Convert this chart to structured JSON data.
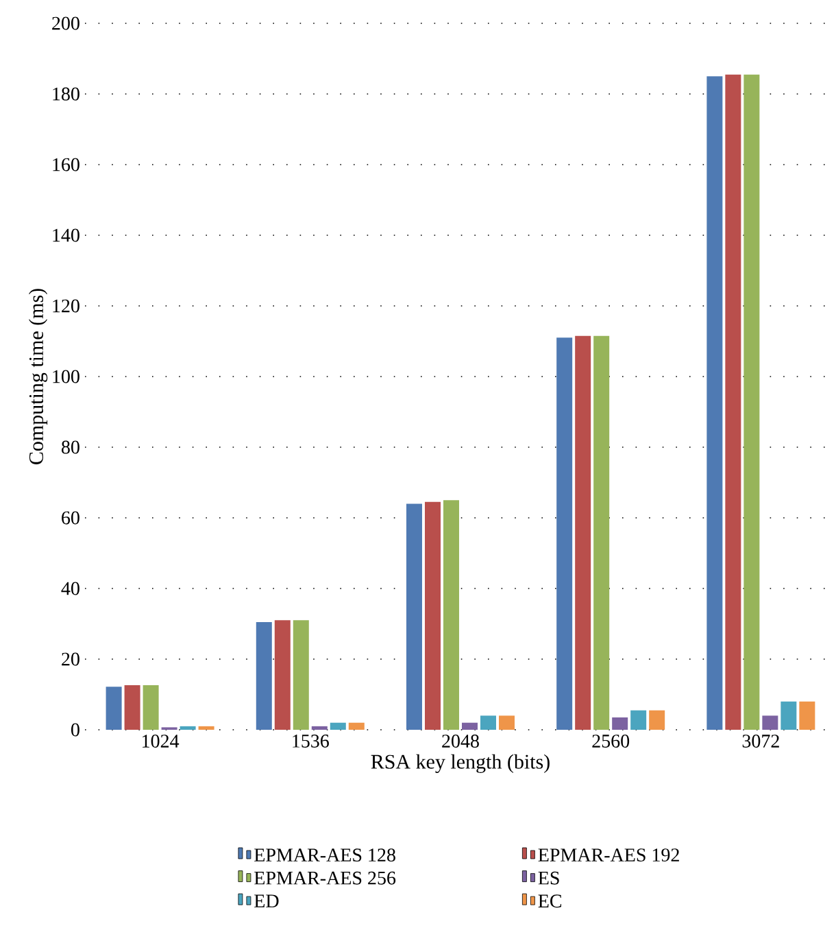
{
  "chart_data": {
    "type": "bar",
    "xlabel": "RSA key length (bits)",
    "ylabel": "Computing time (ms)",
    "categories": [
      "1024",
      "1536",
      "2048",
      "2560",
      "3072"
    ],
    "series": [
      {
        "name": "EPMAR-AES 128",
        "color": "#4f7ab3",
        "values": [
          12.2,
          30.5,
          64,
          111,
          185
        ]
      },
      {
        "name": "EPMAR-AES 192",
        "color": "#b94f4c",
        "values": [
          12.6,
          31,
          64.5,
          111.5,
          185.5
        ]
      },
      {
        "name": "EPMAR-AES 256",
        "color": "#97b45a",
        "values": [
          12.6,
          31,
          65,
          111.5,
          185.5
        ]
      },
      {
        "name": "ES",
        "color": "#7c62a1",
        "values": [
          0.7,
          1,
          2,
          3.5,
          4
        ]
      },
      {
        "name": "ED",
        "color": "#4ba5bf",
        "values": [
          1,
          2,
          4,
          5.5,
          8
        ]
      },
      {
        "name": "EC",
        "color": "#ef9549",
        "values": [
          1,
          2,
          4,
          5.5,
          8
        ]
      }
    ],
    "ylim": [
      0,
      200
    ],
    "yticks": [
      0,
      20,
      40,
      60,
      80,
      100,
      120,
      140,
      160,
      180,
      200
    ],
    "grid": "y",
    "legend": "bottom"
  }
}
